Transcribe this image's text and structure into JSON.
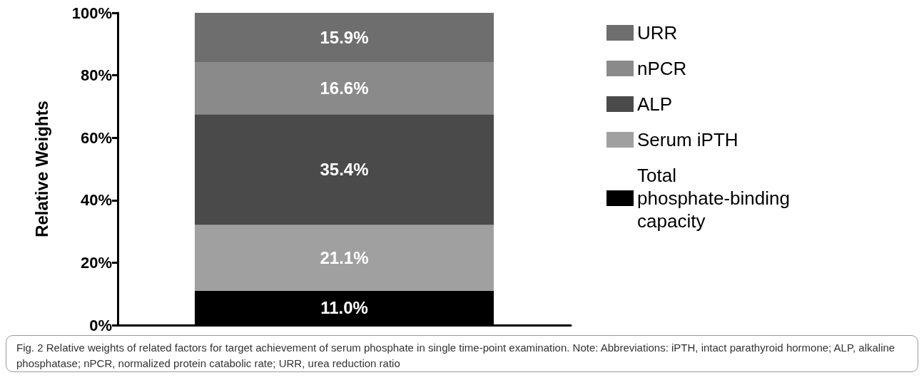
{
  "chart_data": {
    "type": "bar",
    "stacked": true,
    "ylabel": "Relative Weights",
    "categories": [
      null
    ],
    "series": [
      {
        "name": "Total phosphate-binding capacity",
        "color": "#000000",
        "values": [
          11.0
        ],
        "value_labels": [
          "11.0%"
        ]
      },
      {
        "name": "Serum iPTH",
        "color": "#a0a0a0",
        "values": [
          21.1
        ],
        "value_labels": [
          "21.1%"
        ]
      },
      {
        "name": "ALP",
        "color": "#4a4a4a",
        "values": [
          35.4
        ],
        "value_labels": [
          "35.4%"
        ]
      },
      {
        "name": "nPCR",
        "color": "#8a8a8a",
        "values": [
          16.6
        ],
        "value_labels": [
          "16.6%"
        ]
      },
      {
        "name": "URR",
        "color": "#6e6e6e",
        "values": [
          15.9
        ],
        "value_labels": [
          "15.9%"
        ]
      }
    ],
    "ylim": [
      0,
      100
    ],
    "yticks": [
      {
        "value": 0,
        "label": "0%"
      },
      {
        "value": 20,
        "label": "20%"
      },
      {
        "value": 40,
        "label": "40%"
      },
      {
        "value": 60,
        "label": "60%"
      },
      {
        "value": 80,
        "label": "80%"
      },
      {
        "value": 100,
        "label": "100%"
      }
    ],
    "grid": false,
    "legend": "right",
    "annotations": [
      "Fig. 2  Relative weights of related factors for target achievement of serum phosphate in single time-point examination. Note: Abbreviations: iPTH, intact parathyroid hormone; ALP, alkaline phosphatase; nPCR, normalized protein catabolic rate; URR, urea reduction ratio"
    ]
  }
}
